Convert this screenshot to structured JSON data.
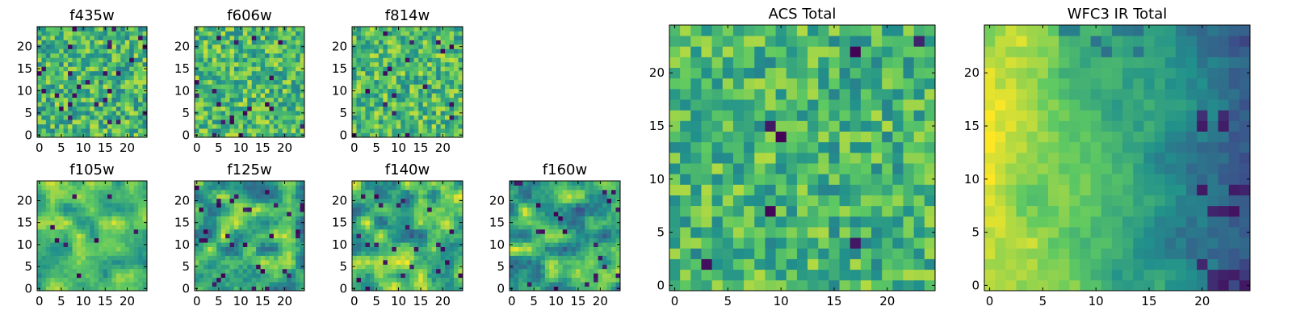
{
  "colormap": {
    "name": "viridis",
    "stops": [
      "#440154",
      "#3b528b",
      "#21918c",
      "#5ec962",
      "#fde725"
    ]
  },
  "chart_data": [
    {
      "type": "heatmap",
      "title": "f435w",
      "grid": {
        "nx": 25,
        "ny": 25
      },
      "xlim": [
        0,
        24
      ],
      "ylim": [
        0,
        24
      ],
      "xticks": [
        0,
        5,
        10,
        15,
        20
      ],
      "yticks": [
        0,
        5,
        10,
        15,
        20
      ],
      "field": {
        "style": "noise",
        "scale": 1,
        "seed": 11,
        "mean": 0.66,
        "spread": 0.18,
        "dark_fraction": 0.04
      }
    },
    {
      "type": "heatmap",
      "title": "f606w",
      "grid": {
        "nx": 25,
        "ny": 25
      },
      "xlim": [
        0,
        24
      ],
      "ylim": [
        0,
        24
      ],
      "xticks": [
        0,
        5,
        10,
        15,
        20
      ],
      "yticks": [
        0,
        5,
        10,
        15,
        20
      ],
      "field": {
        "style": "noise",
        "scale": 1,
        "seed": 23,
        "mean": 0.68,
        "spread": 0.17,
        "dark_fraction": 0.025
      }
    },
    {
      "type": "heatmap",
      "title": "f814w",
      "grid": {
        "nx": 25,
        "ny": 25
      },
      "xlim": [
        0,
        24
      ],
      "ylim": [
        0,
        24
      ],
      "xticks": [
        0,
        5,
        10,
        15,
        20
      ],
      "yticks": [
        0,
        5,
        10,
        15,
        20
      ],
      "field": {
        "style": "noise",
        "scale": 1,
        "seed": 37,
        "mean": 0.68,
        "spread": 0.17,
        "dark_fraction": 0.03
      }
    },
    {
      "type": "heatmap",
      "title": "f105w",
      "grid": {
        "nx": 25,
        "ny": 25
      },
      "xlim": [
        0,
        24
      ],
      "ylim": [
        0,
        24
      ],
      "xticks": [
        0,
        5,
        10,
        15,
        20
      ],
      "yticks": [
        0,
        5,
        10,
        15,
        20
      ],
      "field": {
        "style": "smooth",
        "scale": 3,
        "seed": 41,
        "mean": 0.7,
        "spread": 0.14,
        "dark_fraction": 0.015
      }
    },
    {
      "type": "heatmap",
      "title": "f125w",
      "grid": {
        "nx": 25,
        "ny": 25
      },
      "xlim": [
        0,
        24
      ],
      "ylim": [
        0,
        24
      ],
      "xticks": [
        0,
        5,
        10,
        15,
        20
      ],
      "yticks": [
        0,
        5,
        10,
        15,
        20
      ],
      "field": {
        "style": "smooth",
        "scale": 3,
        "seed": 53,
        "mean": 0.62,
        "spread": 0.2,
        "dark_fraction": 0.04
      }
    },
    {
      "type": "heatmap",
      "title": "f140w",
      "grid": {
        "nx": 25,
        "ny": 25
      },
      "xlim": [
        0,
        24
      ],
      "ylim": [
        0,
        24
      ],
      "xticks": [
        0,
        5,
        10,
        15,
        20
      ],
      "yticks": [
        0,
        5,
        10,
        15,
        20
      ],
      "field": {
        "style": "smooth",
        "scale": 3,
        "seed": 67,
        "mean": 0.62,
        "spread": 0.2,
        "dark_fraction": 0.04
      }
    },
    {
      "type": "heatmap",
      "title": "f160w",
      "grid": {
        "nx": 25,
        "ny": 25
      },
      "xlim": [
        0,
        24
      ],
      "ylim": [
        0,
        24
      ],
      "xticks": [
        0,
        5,
        10,
        15,
        20
      ],
      "yticks": [
        0,
        5,
        10,
        15,
        20
      ],
      "field": {
        "style": "smooth",
        "scale": 3,
        "seed": 79,
        "mean": 0.6,
        "spread": 0.2,
        "dark_fraction": 0.035
      }
    },
    {
      "type": "heatmap",
      "title": "ACS Total",
      "grid": {
        "nx": 25,
        "ny": 25
      },
      "xlim": [
        0,
        24
      ],
      "ylim": [
        0,
        24
      ],
      "xticks": [
        0,
        5,
        10,
        15,
        20
      ],
      "yticks": [
        0,
        5,
        10,
        15,
        20
      ],
      "field": {
        "style": "noise",
        "scale": 1,
        "seed": 97,
        "mean": 0.66,
        "spread": 0.16,
        "dark_fraction": 0.02
      }
    },
    {
      "type": "heatmap",
      "title": "WFC3 IR Total",
      "grid": {
        "nx": 25,
        "ny": 25
      },
      "xlim": [
        0,
        24
      ],
      "ylim": [
        0,
        24
      ],
      "xticks": [
        0,
        5,
        10,
        15,
        20
      ],
      "yticks": [
        0,
        5,
        10,
        15,
        20
      ],
      "field": {
        "style": "gradient",
        "scale": 4,
        "seed": 103,
        "mean": 0.58,
        "spread": 0.1,
        "dark_fraction": 0.0
      }
    }
  ]
}
